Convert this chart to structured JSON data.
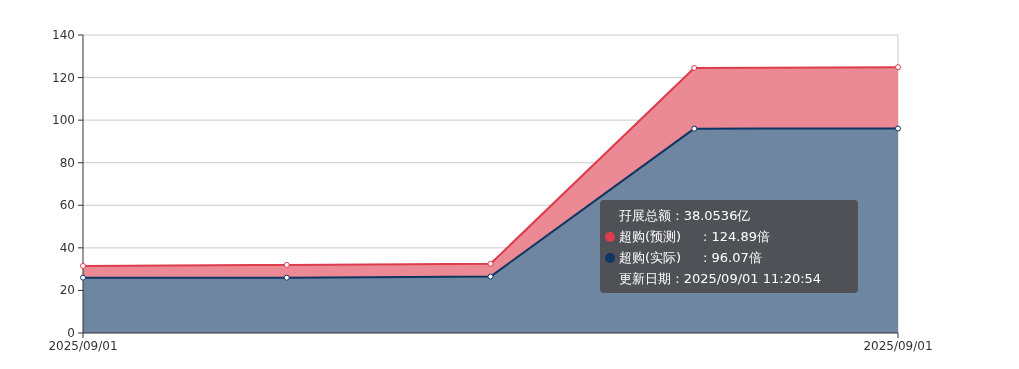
{
  "chart_data": {
    "type": "area",
    "categories": [
      "2025/09/01",
      null,
      null,
      null,
      "2025/09/01"
    ],
    "series": [
      {
        "name": "超购(预测)",
        "color": "#dd3c4c",
        "values": [
          31.5,
          32,
          32.5,
          124.5,
          124.89
        ]
      },
      {
        "name": "超购(实际)",
        "color": "#0f3563",
        "values": [
          26,
          26,
          26.5,
          96,
          96.07
        ]
      }
    ],
    "ylim": [
      0,
      140
    ],
    "yticks": [
      0,
      20,
      40,
      60,
      80,
      100,
      120,
      140
    ],
    "grid": "y",
    "marker": "circle",
    "line_style": "solid",
    "legend": "bottom right",
    "annotations": [
      "孖展总额 : 38.0536亿",
      ": 124.89倍",
      ": 96.07倍",
      "更新日期 : 2025/09/01 11:20:54"
    ]
  }
}
